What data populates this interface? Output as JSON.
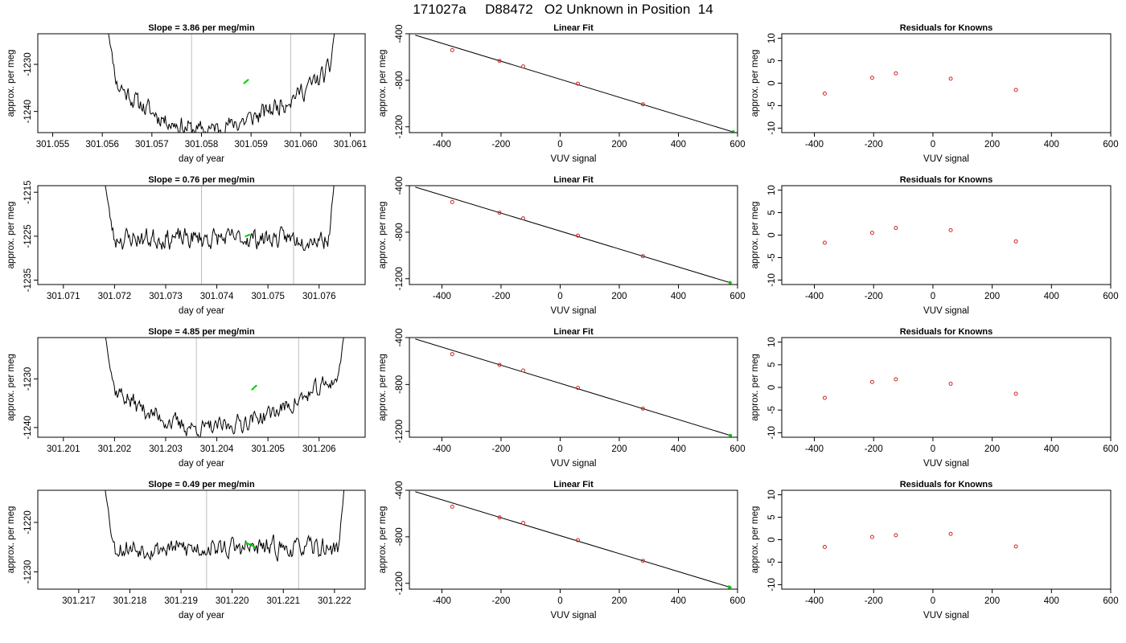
{
  "title": "171027a     D88472   O2 Unknown in Position  14",
  "colors": {
    "trace": "#000000",
    "guide": "#bebebe",
    "point": "#cd2626",
    "highlight": "#00cd00",
    "frame": "#000000"
  },
  "chart_data": [
    {
      "type": "line",
      "title": "Slope =  3.86  per meg/min",
      "xlabel": "day of year",
      "ylabel": "approx. per meg",
      "xlim": [
        301.0547,
        301.0613
      ],
      "ylim": [
        -1244.5,
        -1223.5
      ],
      "xticks": [
        301.055,
        301.056,
        301.057,
        301.058,
        301.059,
        301.06,
        301.061
      ],
      "xtick_labels": [
        "301.055",
        "301.056",
        "301.057",
        "301.058",
        "301.059",
        "301.060",
        "301.061"
      ],
      "yticks": [
        -1240,
        -1230
      ],
      "ytick_labels": [
        "-1240",
        "-1230"
      ],
      "guides": [
        301.0578,
        301.0598
      ],
      "series": [
        {
          "start": 301.0561,
          "end": 301.0607,
          "level": -1233.5,
          "shape": "bowl",
          "depth": 10.5,
          "noise": 1.6,
          "entry": -1222,
          "exit": -1222,
          "seed": 11
        }
      ],
      "highlight": {
        "x": [
          301.05885,
          301.05895
        ],
        "y": [
          -1234.1,
          -1233.2
        ]
      },
      "grid": false,
      "legend": "none"
    },
    {
      "type": "scatter",
      "title": "Linear Fit",
      "xlabel": "VUV signal",
      "ylabel": "approx. per meg",
      "xlim": [
        -510,
        600
      ],
      "ylim": [
        -1250,
        -400
      ],
      "xticks": [
        -400,
        -200,
        0,
        200,
        400,
        600
      ],
      "xtick_labels": [
        "-400",
        "-200",
        "0",
        "200",
        "400",
        "600"
      ],
      "yticks": [
        -1200,
        -800,
        -400
      ],
      "ytick_labels": [
        "-1200",
        "-800",
        "-400"
      ],
      "line": {
        "x": [
          -490,
          590
        ],
        "y": [
          -412,
          -1248
        ]
      },
      "x": [
        -365,
        -205,
        -125,
        60,
        280
      ],
      "y": [
        -541,
        -633,
        -681,
        -829,
        -1006
      ],
      "highlight": {
        "x": [
          585
        ],
        "y": [
          -1244
        ]
      },
      "grid": false,
      "legend": "none"
    },
    {
      "type": "scatter",
      "title": "Residuals for Knowns",
      "xlabel": "VUV signal",
      "ylabel": "approx. per meg",
      "xlim": [
        -510,
        600
      ],
      "ylim": [
        -11,
        11
      ],
      "xticks": [
        -400,
        -200,
        0,
        200,
        400,
        600
      ],
      "xtick_labels": [
        "-400",
        "-200",
        "0",
        "200",
        "400",
        "600"
      ],
      "yticks": [
        -10,
        -5,
        0,
        5,
        10
      ],
      "ytick_labels": [
        "-10",
        "-5",
        "0",
        "5",
        "10"
      ],
      "x": [
        -365,
        -205,
        -125,
        60,
        280
      ],
      "y": [
        -2.3,
        1.2,
        2.2,
        1.0,
        -1.5
      ],
      "grid": false,
      "legend": "none"
    },
    {
      "type": "line",
      "title": "Slope =  0.76  per meg/min",
      "xlabel": "day of year",
      "ylabel": "approx. per meg",
      "xlim": [
        301.0705,
        301.0769
      ],
      "ylim": [
        -1236,
        -1213.5
      ],
      "xticks": [
        301.071,
        301.072,
        301.073,
        301.074,
        301.075,
        301.076
      ],
      "xtick_labels": [
        "301.071",
        "301.072",
        "301.073",
        "301.074",
        "301.075",
        "301.076"
      ],
      "yticks": [
        -1235,
        -1225,
        -1215
      ],
      "ytick_labels": [
        "-1235",
        "-1225",
        "-1215"
      ],
      "guides": [
        301.0737,
        301.0755
      ],
      "series": [
        {
          "start": 301.0718,
          "end": 301.0763,
          "level": -1225.5,
          "shape": "flat",
          "depth": 0,
          "noise": 1.8,
          "entry": -1212,
          "exit": -1212,
          "seed": 23
        }
      ],
      "highlight": {
        "x": [
          301.07455,
          301.07465
        ],
        "y": [
          -1225.1,
          -1224.6
        ]
      },
      "grid": false,
      "legend": "none"
    },
    {
      "type": "scatter",
      "title": "Linear Fit",
      "xlabel": "VUV signal",
      "ylabel": "approx. per meg",
      "xlim": [
        -510,
        600
      ],
      "ylim": [
        -1250,
        -400
      ],
      "xticks": [
        -400,
        -200,
        0,
        200,
        400,
        600
      ],
      "xtick_labels": [
        "-400",
        "-200",
        "0",
        "200",
        "400",
        "600"
      ],
      "yticks": [
        -1200,
        -800,
        -400
      ],
      "ytick_labels": [
        "-1200",
        "-800",
        "-400"
      ],
      "line": {
        "x": [
          -490,
          580
        ],
        "y": [
          -412,
          -1238
        ]
      },
      "x": [
        -365,
        -205,
        -125,
        60,
        280
      ],
      "y": [
        -541,
        -633,
        -681,
        -829,
        -1006
      ],
      "highlight": {
        "x": [
          575
        ],
        "y": [
          -1234
        ]
      },
      "grid": false,
      "legend": "none"
    },
    {
      "type": "scatter",
      "title": "Residuals for Knowns",
      "xlabel": "VUV signal",
      "ylabel": "approx. per meg",
      "xlim": [
        -510,
        600
      ],
      "ylim": [
        -11,
        11
      ],
      "xticks": [
        -400,
        -200,
        0,
        200,
        400,
        600
      ],
      "xtick_labels": [
        "-400",
        "-200",
        "0",
        "200",
        "400",
        "600"
      ],
      "yticks": [
        -10,
        -5,
        0,
        5,
        10
      ],
      "ytick_labels": [
        "-10",
        "-5",
        "0",
        "5",
        "10"
      ],
      "x": [
        -365,
        -205,
        -125,
        60,
        280
      ],
      "y": [
        -1.7,
        0.5,
        1.6,
        1.1,
        -1.4
      ],
      "grid": false,
      "legend": "none"
    },
    {
      "type": "line",
      "title": "Slope =  4.85  per meg/min",
      "xlabel": "day of year",
      "ylabel": "approx. per meg",
      "xlim": [
        301.2005,
        301.2069
      ],
      "ylim": [
        -1242,
        -1221.5
      ],
      "xticks": [
        301.201,
        301.202,
        301.203,
        301.204,
        301.205,
        301.206
      ],
      "xtick_labels": [
        "301.201",
        "301.202",
        "301.203",
        "301.204",
        "301.205",
        "301.206"
      ],
      "yticks": [
        -1240,
        -1230
      ],
      "ytick_labels": [
        "-1240",
        "-1230"
      ],
      "guides": [
        301.2036,
        301.2056
      ],
      "series": [
        {
          "start": 301.2018,
          "end": 301.2065,
          "level": -1231.5,
          "shape": "bowl",
          "depth": 8.8,
          "noise": 1.5,
          "entry": -1220,
          "exit": -1220,
          "seed": 37
        }
      ],
      "highlight": {
        "x": [
          301.20468,
          301.20478
        ],
        "y": [
          -1232.3,
          -1231.3
        ]
      },
      "grid": false,
      "legend": "none"
    },
    {
      "type": "scatter",
      "title": "Linear Fit",
      "xlabel": "VUV signal",
      "ylabel": "approx. per meg",
      "xlim": [
        -510,
        600
      ],
      "ylim": [
        -1250,
        -400
      ],
      "xticks": [
        -400,
        -200,
        0,
        200,
        400,
        600
      ],
      "xtick_labels": [
        "-400",
        "-200",
        "0",
        "200",
        "400",
        "600"
      ],
      "yticks": [
        -1200,
        -800,
        -400
      ],
      "ytick_labels": [
        "-1200",
        "-800",
        "-400"
      ],
      "line": {
        "x": [
          -490,
          580
        ],
        "y": [
          -412,
          -1238
        ]
      },
      "x": [
        -365,
        -205,
        -125,
        60,
        280
      ],
      "y": [
        -541,
        -633,
        -681,
        -829,
        -1006
      ],
      "highlight": {
        "x": [
          576
        ],
        "y": [
          -1235
        ]
      },
      "grid": false,
      "legend": "none"
    },
    {
      "type": "scatter",
      "title": "Residuals for Knowns",
      "xlabel": "VUV signal",
      "ylabel": "approx. per meg",
      "xlim": [
        -510,
        600
      ],
      "ylim": [
        -11,
        11
      ],
      "xticks": [
        -400,
        -200,
        0,
        200,
        400,
        600
      ],
      "xtick_labels": [
        "-400",
        "-200",
        "0",
        "200",
        "400",
        "600"
      ],
      "yticks": [
        -10,
        -5,
        0,
        5,
        10
      ],
      "ytick_labels": [
        "-10",
        "-5",
        "0",
        "5",
        "10"
      ],
      "x": [
        -365,
        -205,
        -125,
        60,
        280
      ],
      "y": [
        -2.3,
        1.2,
        1.8,
        0.8,
        -1.4
      ],
      "grid": false,
      "legend": "none"
    },
    {
      "type": "line",
      "title": "Slope =  0.49  per meg/min",
      "xlabel": "day of year",
      "ylabel": "approx. per meg",
      "xlim": [
        301.2162,
        301.2226
      ],
      "ylim": [
        -1233.5,
        -1213.5
      ],
      "xticks": [
        301.217,
        301.218,
        301.219,
        301.22,
        301.221,
        301.222
      ],
      "xtick_labels": [
        "301.217",
        "301.218",
        "301.219",
        "301.220",
        "301.221",
        "301.222"
      ],
      "yticks": [
        -1230,
        -1220
      ],
      "ytick_labels": [
        "-1230",
        "-1220"
      ],
      "guides": [
        301.2195,
        301.2213
      ],
      "series": [
        {
          "start": 301.2175,
          "end": 301.2222,
          "level": -1225.2,
          "shape": "flat",
          "depth": 0,
          "noise": 1.6,
          "entry": -1212,
          "exit": -1212,
          "seed": 53
        }
      ],
      "highlight": {
        "x": [
          301.22025,
          301.22045
        ],
        "y": [
          -1224.0,
          -1225.0
        ]
      },
      "grid": false,
      "legend": "none"
    },
    {
      "type": "scatter",
      "title": "Linear Fit",
      "xlabel": "VUV signal",
      "ylabel": "approx. per meg",
      "xlim": [
        -510,
        600
      ],
      "ylim": [
        -1250,
        -400
      ],
      "xticks": [
        -400,
        -200,
        0,
        200,
        400,
        600
      ],
      "xtick_labels": [
        "-400",
        "-200",
        "0",
        "200",
        "400",
        "600"
      ],
      "yticks": [
        -1200,
        -800,
        -400
      ],
      "ytick_labels": [
        "-1200",
        "-800",
        "-400"
      ],
      "line": {
        "x": [
          -490,
          580
        ],
        "y": [
          -412,
          -1238
        ]
      },
      "x": [
        -365,
        -205,
        -125,
        60,
        280
      ],
      "y": [
        -541,
        -633,
        -681,
        -829,
        -1006
      ],
      "highlight": {
        "x": [
          572
        ],
        "y": [
          -1232
        ]
      },
      "grid": false,
      "legend": "none"
    },
    {
      "type": "scatter",
      "title": "Residuals for Knowns",
      "xlabel": "VUV signal",
      "ylabel": "approx. per meg",
      "xlim": [
        -510,
        600
      ],
      "ylim": [
        -11,
        11
      ],
      "xticks": [
        -400,
        -200,
        0,
        200,
        400,
        600
      ],
      "xtick_labels": [
        "-400",
        "-200",
        "0",
        "200",
        "400",
        "600"
      ],
      "yticks": [
        -10,
        -5,
        0,
        5,
        10
      ],
      "ytick_labels": [
        "-10",
        "-5",
        "0",
        "5",
        "10"
      ],
      "x": [
        -365,
        -205,
        -125,
        60,
        280
      ],
      "y": [
        -1.6,
        0.6,
        1.0,
        1.3,
        -1.5
      ],
      "grid": false,
      "legend": "none"
    }
  ]
}
